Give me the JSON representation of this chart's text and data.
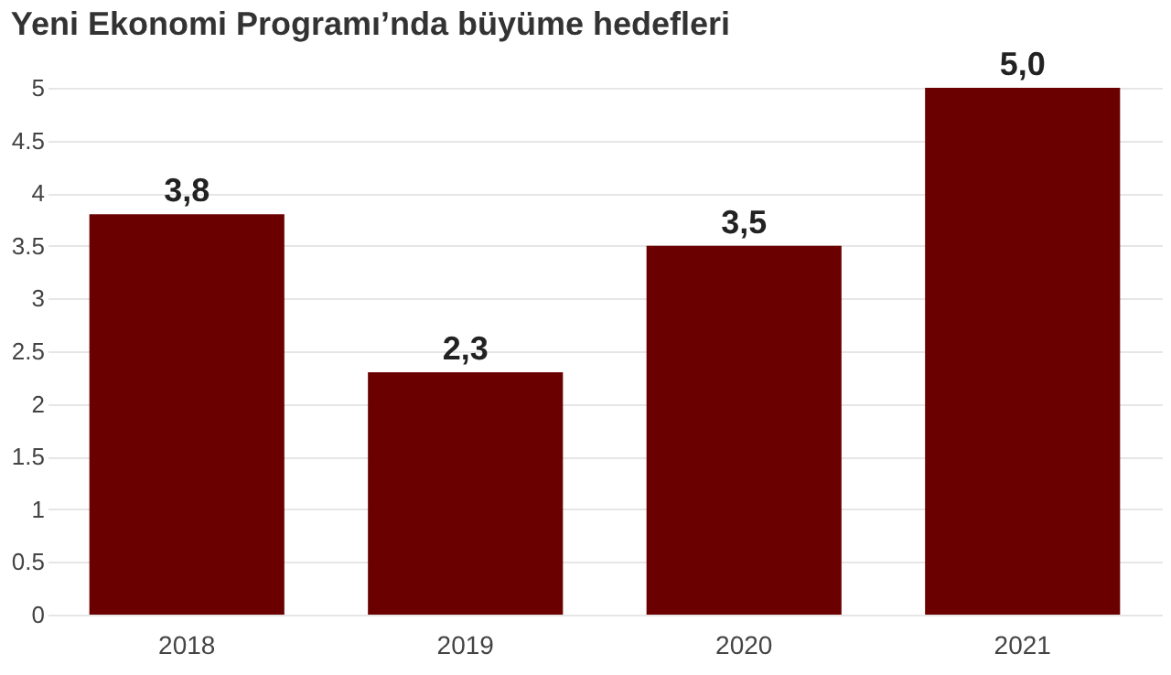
{
  "chart_data": {
    "type": "bar",
    "title": "Yeni Ekonomi Programı’nda büyüme hedefleri",
    "categories": [
      "2018",
      "2019",
      "2020",
      "2021"
    ],
    "values": [
      3.8,
      2.3,
      3.5,
      5.0
    ],
    "value_labels": [
      "3,8",
      "2,3",
      "3,5",
      "5,0"
    ],
    "color": "#6b0000",
    "ylim": [
      0,
      5
    ],
    "yticks": [
      0,
      0.5,
      1,
      1.5,
      2,
      2.5,
      3,
      3.5,
      4,
      4.5,
      5
    ],
    "grid": "y"
  }
}
